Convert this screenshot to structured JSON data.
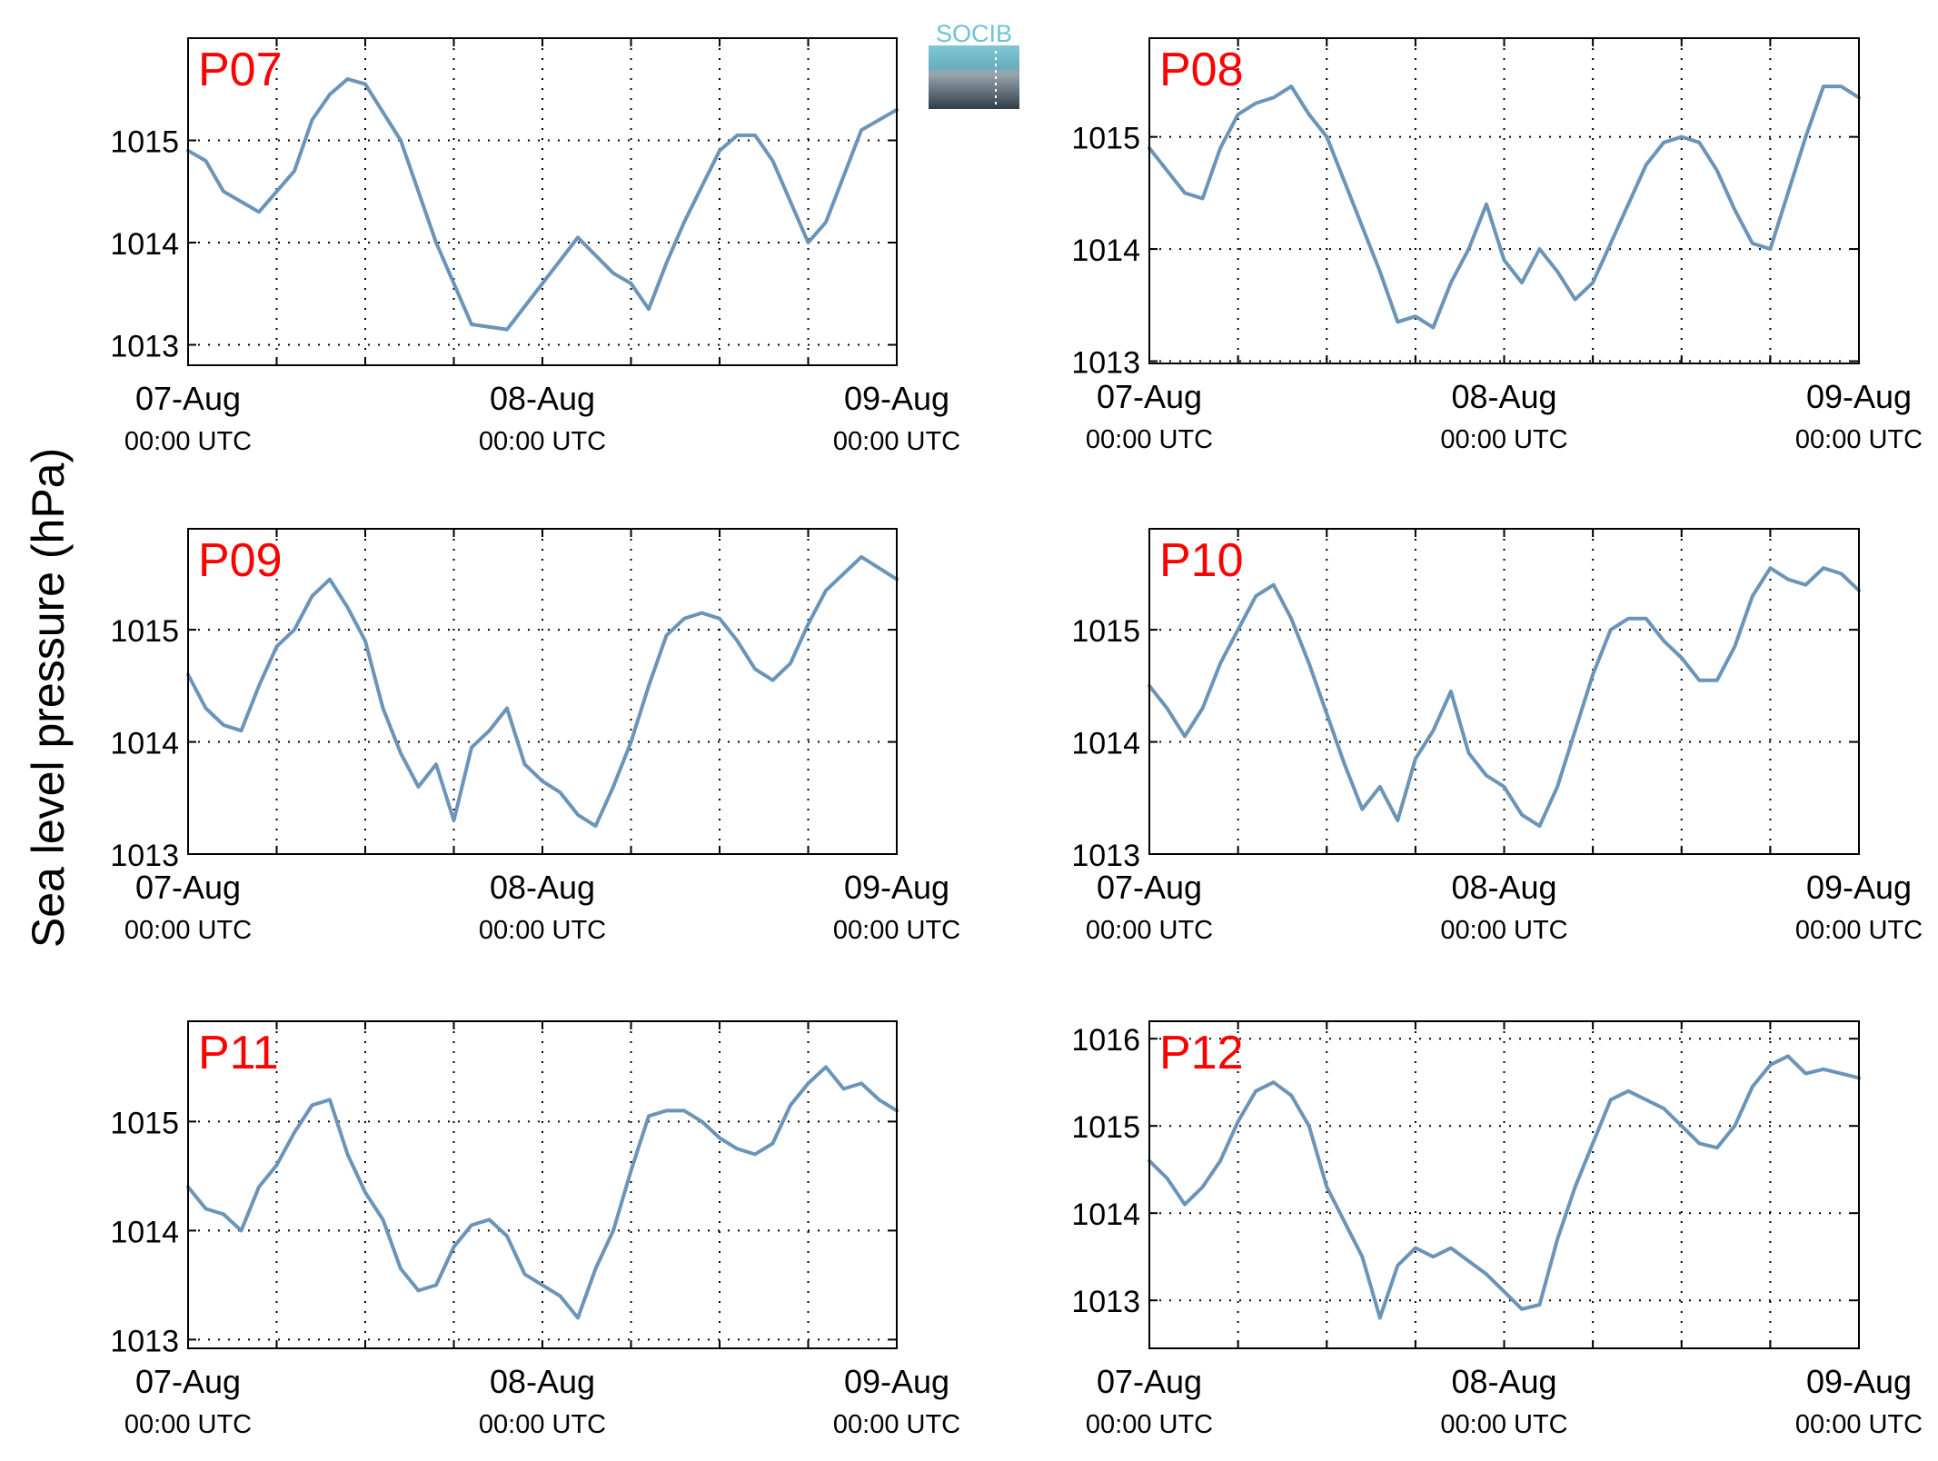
{
  "figure": {
    "ylabel": "Sea level pressure (hPa)",
    "logo_text": "SOCIB",
    "colors": {
      "line": "#6a94b8",
      "panel_label": "#ff0000",
      "axes": "#000000",
      "grid": "#000000"
    }
  },
  "chart_data": [
    {
      "type": "line",
      "title": "P07",
      "x": [
        0,
        0.05,
        0.1,
        0.2,
        0.3,
        0.35,
        0.4,
        0.45,
        0.5,
        0.6,
        0.7,
        0.8,
        0.9,
        1.0,
        1.1,
        1.2,
        1.25,
        1.3,
        1.35,
        1.4,
        1.45,
        1.5,
        1.55,
        1.6,
        1.65,
        1.7,
        1.75,
        1.8,
        1.9,
        2.0
      ],
      "y": [
        1014.9,
        1014.8,
        1014.5,
        1014.3,
        1014.7,
        1015.2,
        1015.45,
        1015.6,
        1015.55,
        1015.0,
        1014.0,
        1013.2,
        1013.15,
        1013.6,
        1014.05,
        1013.7,
        1013.6,
        1013.35,
        1013.8,
        1014.2,
        1014.55,
        1014.9,
        1015.05,
        1015.05,
        1014.8,
        1014.4,
        1014.0,
        1014.2,
        1015.1,
        1015.3
      ],
      "yticks": [
        1013,
        1014,
        1015
      ],
      "ylim": [
        1012.8,
        1016
      ],
      "xticks": [
        {
          "t": 0,
          "date": "07-Aug",
          "time": "00:00 UTC"
        },
        {
          "t": 1,
          "date": "08-Aug",
          "time": "00:00 UTC"
        },
        {
          "t": 2,
          "date": "09-Aug",
          "time": "00:00 UTC"
        }
      ]
    },
    {
      "type": "line",
      "title": "P08",
      "x": [
        0,
        0.05,
        0.1,
        0.15,
        0.2,
        0.25,
        0.3,
        0.35,
        0.4,
        0.45,
        0.5,
        0.55,
        0.6,
        0.65,
        0.7,
        0.75,
        0.8,
        0.85,
        0.9,
        0.95,
        1.0,
        1.05,
        1.1,
        1.15,
        1.2,
        1.25,
        1.3,
        1.35,
        1.4,
        1.45,
        1.5,
        1.55,
        1.6,
        1.65,
        1.7,
        1.75,
        1.8,
        1.85,
        1.9,
        1.95,
        2.0
      ],
      "y": [
        1014.9,
        1014.7,
        1014.5,
        1014.45,
        1014.9,
        1015.2,
        1015.3,
        1015.35,
        1015.45,
        1015.2,
        1015.0,
        1014.6,
        1014.2,
        1013.8,
        1013.35,
        1013.4,
        1013.3,
        1013.7,
        1014.0,
        1014.4,
        1013.9,
        1013.7,
        1014.0,
        1013.8,
        1013.55,
        1013.7,
        1014.05,
        1014.4,
        1014.75,
        1014.95,
        1015.0,
        1014.95,
        1014.7,
        1014.35,
        1014.05,
        1014.0,
        1014.5,
        1015.0,
        1015.45,
        1015.45,
        1015.35
      ],
      "yticks": [
        1013,
        1014,
        1015
      ],
      "ylim": [
        1012.98,
        1015.88
      ],
      "xticks": [
        {
          "t": 0,
          "date": "07-Aug",
          "time": "00:00 UTC"
        },
        {
          "t": 1,
          "date": "08-Aug",
          "time": "00:00 UTC"
        },
        {
          "t": 2,
          "date": "09-Aug",
          "time": "00:00 UTC"
        }
      ]
    },
    {
      "type": "line",
      "title": "P09",
      "x": [
        0,
        0.05,
        0.1,
        0.15,
        0.2,
        0.25,
        0.3,
        0.35,
        0.4,
        0.45,
        0.5,
        0.55,
        0.6,
        0.65,
        0.7,
        0.75,
        0.8,
        0.85,
        0.9,
        0.95,
        1.0,
        1.05,
        1.1,
        1.15,
        1.2,
        1.25,
        1.3,
        1.35,
        1.4,
        1.45,
        1.5,
        1.55,
        1.6,
        1.65,
        1.7,
        1.75,
        1.8,
        1.85,
        1.9,
        1.95,
        2.0
      ],
      "y": [
        1014.6,
        1014.3,
        1014.15,
        1014.1,
        1014.5,
        1014.85,
        1015.0,
        1015.3,
        1015.45,
        1015.2,
        1014.9,
        1014.3,
        1013.9,
        1013.6,
        1013.8,
        1013.3,
        1013.95,
        1014.1,
        1014.3,
        1013.8,
        1013.65,
        1013.55,
        1013.35,
        1013.25,
        1013.6,
        1014.0,
        1014.5,
        1014.95,
        1015.1,
        1015.15,
        1015.1,
        1014.9,
        1014.65,
        1014.55,
        1014.7,
        1015.05,
        1015.35,
        1015.5,
        1015.65,
        1015.55,
        1015.45
      ],
      "yticks": [
        1013,
        1014,
        1015
      ],
      "ylim": [
        1013,
        1015.9
      ],
      "xticks": [
        {
          "t": 0,
          "date": "07-Aug",
          "time": "00:00 UTC"
        },
        {
          "t": 1,
          "date": "08-Aug",
          "time": "00:00 UTC"
        },
        {
          "t": 2,
          "date": "09-Aug",
          "time": "00:00 UTC"
        }
      ]
    },
    {
      "type": "line",
      "title": "P10",
      "x": [
        0,
        0.05,
        0.1,
        0.15,
        0.2,
        0.25,
        0.3,
        0.35,
        0.4,
        0.45,
        0.5,
        0.55,
        0.6,
        0.65,
        0.7,
        0.75,
        0.8,
        0.85,
        0.9,
        0.95,
        1.0,
        1.05,
        1.1,
        1.15,
        1.2,
        1.25,
        1.3,
        1.35,
        1.4,
        1.45,
        1.5,
        1.55,
        1.6,
        1.65,
        1.7,
        1.75,
        1.8,
        1.85,
        1.9,
        1.95,
        2.0
      ],
      "y": [
        1014.5,
        1014.3,
        1014.05,
        1014.3,
        1014.7,
        1015.0,
        1015.3,
        1015.4,
        1015.1,
        1014.7,
        1014.25,
        1013.8,
        1013.4,
        1013.6,
        1013.3,
        1013.85,
        1014.1,
        1014.45,
        1013.9,
        1013.7,
        1013.6,
        1013.35,
        1013.25,
        1013.6,
        1014.1,
        1014.6,
        1015.0,
        1015.1,
        1015.1,
        1014.9,
        1014.75,
        1014.55,
        1014.55,
        1014.85,
        1015.3,
        1015.55,
        1015.45,
        1015.4,
        1015.55,
        1015.5,
        1015.35
      ],
      "yticks": [
        1013,
        1014,
        1015
      ],
      "ylim": [
        1013,
        1015.9
      ],
      "xticks": [
        {
          "t": 0,
          "date": "07-Aug",
          "time": "00:00 UTC"
        },
        {
          "t": 1,
          "date": "08-Aug",
          "time": "00:00 UTC"
        },
        {
          "t": 2,
          "date": "09-Aug",
          "time": "00:00 UTC"
        }
      ]
    },
    {
      "type": "line",
      "title": "P11",
      "x": [
        0,
        0.05,
        0.1,
        0.15,
        0.2,
        0.25,
        0.3,
        0.35,
        0.4,
        0.45,
        0.5,
        0.55,
        0.6,
        0.65,
        0.7,
        0.75,
        0.8,
        0.85,
        0.9,
        0.95,
        1.0,
        1.05,
        1.1,
        1.15,
        1.2,
        1.25,
        1.3,
        1.35,
        1.4,
        1.45,
        1.5,
        1.55,
        1.6,
        1.65,
        1.7,
        1.75,
        1.8,
        1.85,
        1.9,
        1.95,
        2.0
      ],
      "y": [
        1014.4,
        1014.2,
        1014.15,
        1014.0,
        1014.4,
        1014.6,
        1014.9,
        1015.15,
        1015.2,
        1014.7,
        1014.35,
        1014.1,
        1013.65,
        1013.45,
        1013.5,
        1013.85,
        1014.05,
        1014.1,
        1013.95,
        1013.6,
        1013.5,
        1013.4,
        1013.2,
        1013.65,
        1014.0,
        1014.55,
        1015.05,
        1015.1,
        1015.1,
        1015.0,
        1014.85,
        1014.75,
        1014.7,
        1014.8,
        1015.15,
        1015.35,
        1015.5,
        1015.3,
        1015.35,
        1015.2,
        1015.1
      ],
      "yticks": [
        1013,
        1014,
        1015
      ],
      "ylim": [
        1012.92,
        1015.92
      ],
      "xticks": [
        {
          "t": 0,
          "date": "07-Aug",
          "time": "00:00 UTC"
        },
        {
          "t": 1,
          "date": "08-Aug",
          "time": "00:00 UTC"
        },
        {
          "t": 2,
          "date": "09-Aug",
          "time": "00:00 UTC"
        }
      ]
    },
    {
      "type": "line",
      "title": "P12",
      "x": [
        0,
        0.05,
        0.1,
        0.15,
        0.2,
        0.25,
        0.3,
        0.35,
        0.4,
        0.45,
        0.5,
        0.55,
        0.6,
        0.65,
        0.7,
        0.75,
        0.8,
        0.85,
        0.9,
        0.95,
        1.0,
        1.05,
        1.1,
        1.15,
        1.2,
        1.25,
        1.3,
        1.35,
        1.4,
        1.45,
        1.5,
        1.55,
        1.6,
        1.65,
        1.7,
        1.75,
        1.8,
        1.85,
        1.9,
        1.95,
        2.0
      ],
      "y": [
        1014.6,
        1014.4,
        1014.1,
        1014.3,
        1014.6,
        1015.05,
        1015.4,
        1015.5,
        1015.35,
        1015.0,
        1014.3,
        1013.9,
        1013.5,
        1012.8,
        1013.4,
        1013.6,
        1013.5,
        1013.6,
        1013.45,
        1013.3,
        1013.1,
        1012.9,
        1012.95,
        1013.7,
        1014.3,
        1014.8,
        1015.3,
        1015.4,
        1015.3,
        1015.2,
        1015.0,
        1014.8,
        1014.75,
        1015.0,
        1015.45,
        1015.7,
        1015.8,
        1015.6,
        1015.65,
        1015.6,
        1015.55
      ],
      "yticks": [
        1013,
        1014,
        1015,
        1016
      ],
      "ylim": [
        1012.45,
        1016.2
      ],
      "xticks": [
        {
          "t": 0,
          "date": "07-Aug",
          "time": "00:00 UTC"
        },
        {
          "t": 1,
          "date": "08-Aug",
          "time": "00:00 UTC"
        },
        {
          "t": 2,
          "date": "09-Aug",
          "time": "00:00 UTC"
        }
      ]
    }
  ]
}
